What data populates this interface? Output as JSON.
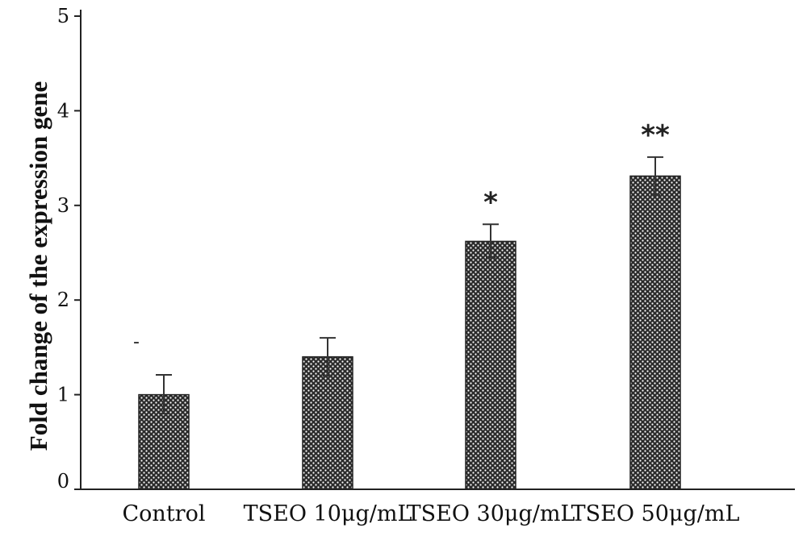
{
  "chart_data": {
    "type": "bar",
    "title": "",
    "xlabel": "",
    "ylabel": "Fold change of the expression gene",
    "ylim": [
      0,
      5
    ],
    "yticks": [
      0,
      1,
      2,
      3,
      4,
      5
    ],
    "categories": [
      "Control",
      "TSEO 10μg/mL",
      "TSEO 30μg/mL",
      "TSEO 50μg/mL"
    ],
    "values": [
      1.0,
      1.4,
      2.62,
      3.31
    ],
    "error_up": [
      1.21,
      1.6,
      2.8,
      3.51
    ],
    "error_down": [
      0.8,
      1.2,
      2.45,
      3.11
    ],
    "annotations": [
      "-",
      "",
      "*",
      "**"
    ],
    "grid": false,
    "legend": "none",
    "bar_pattern": "crosshatch-dark"
  }
}
